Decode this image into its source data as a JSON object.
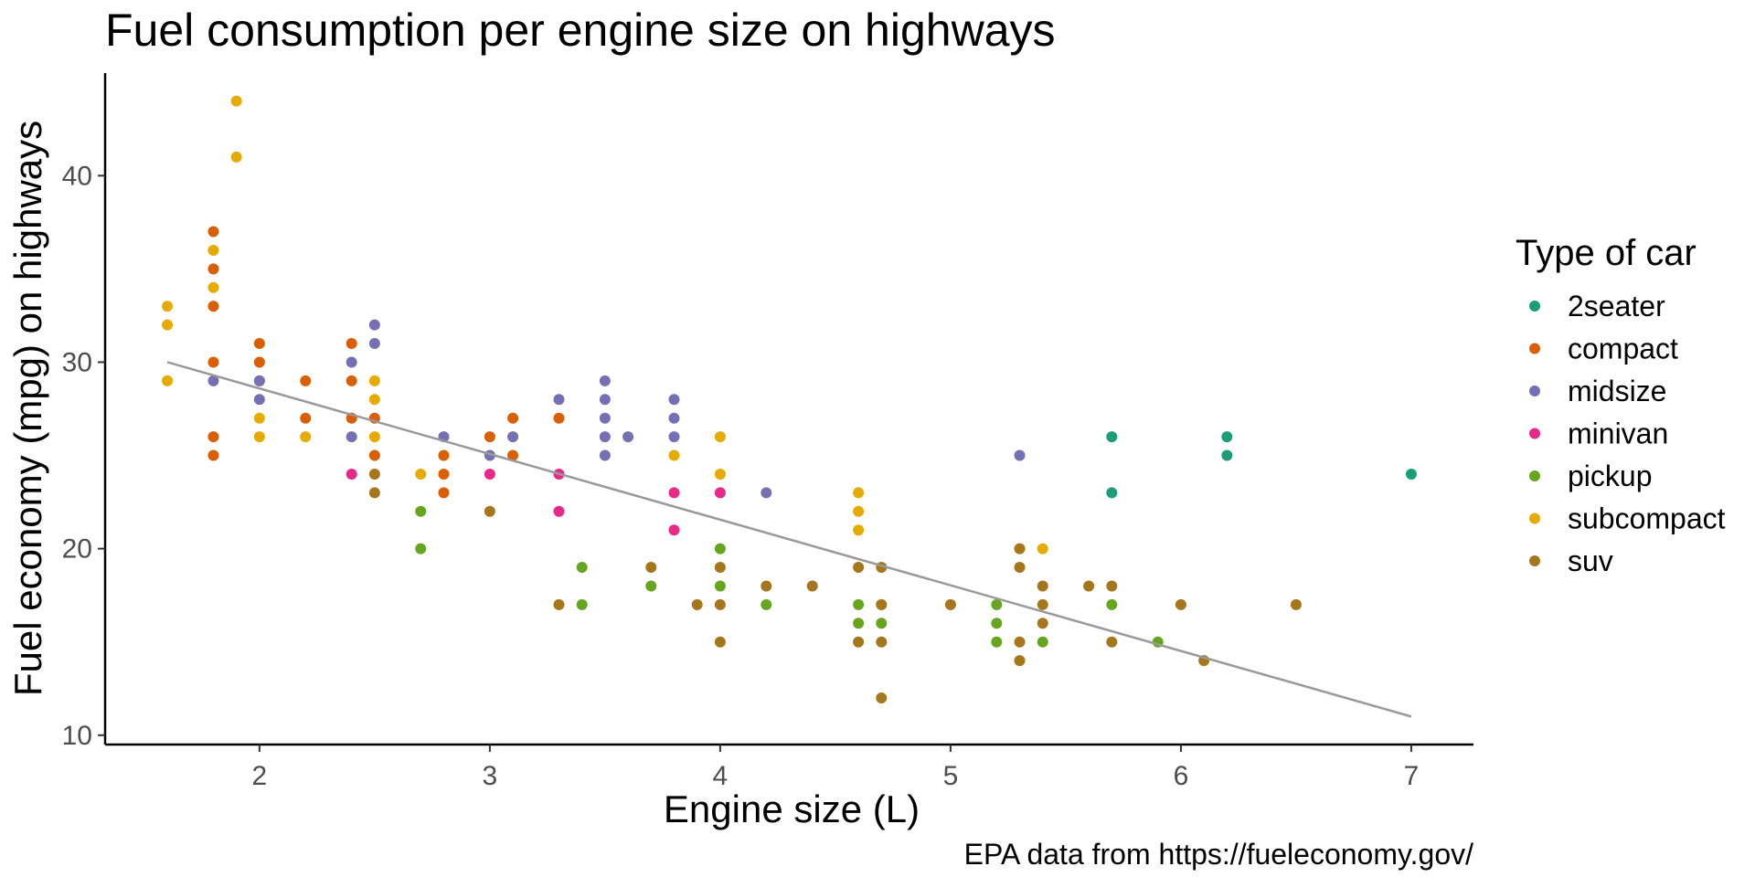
{
  "chart_data": {
    "type": "scatter",
    "title": "Fuel consumption per engine size on highways",
    "xlabel": "Engine size (L)",
    "ylabel": "Fuel economy (mpg) on highways",
    "caption": "EPA data from https://fueleconomy.gov/",
    "xlim": [
      1.33,
      7.27
    ],
    "ylim": [
      9.5,
      45.5
    ],
    "x_ticks": [
      2,
      3,
      4,
      5,
      6,
      7
    ],
    "y_ticks": [
      10,
      20,
      30,
      40
    ],
    "grid": false,
    "legend": {
      "title": "Type of car",
      "placement": "right"
    },
    "trendline": {
      "x": [
        1.6,
        7.0
      ],
      "y": [
        30.0,
        11.0
      ],
      "color": "#999999"
    },
    "series": [
      {
        "name": "2seater",
        "color": "#1B9E77",
        "points": [
          [
            5.7,
            26
          ],
          [
            5.7,
            23
          ],
          [
            6.2,
            26
          ],
          [
            6.2,
            25
          ],
          [
            7.0,
            24
          ]
        ]
      },
      {
        "name": "compact",
        "color": "#D95F02",
        "points": [
          [
            1.8,
            37
          ],
          [
            1.8,
            35
          ],
          [
            1.8,
            33
          ],
          [
            1.8,
            30
          ],
          [
            1.8,
            26
          ],
          [
            1.8,
            25
          ],
          [
            2.0,
            31
          ],
          [
            2.0,
            30
          ],
          [
            2.0,
            29
          ],
          [
            2.2,
            29
          ],
          [
            2.2,
            27
          ],
          [
            2.4,
            31
          ],
          [
            2.4,
            29
          ],
          [
            2.4,
            27
          ],
          [
            2.5,
            27
          ],
          [
            2.5,
            25
          ],
          [
            2.8,
            25
          ],
          [
            2.8,
            24
          ],
          [
            2.8,
            23
          ],
          [
            3.0,
            26
          ],
          [
            3.1,
            27
          ],
          [
            3.1,
            25
          ],
          [
            3.3,
            27
          ]
        ]
      },
      {
        "name": "midsize",
        "color": "#7570B3",
        "points": [
          [
            1.8,
            29
          ],
          [
            2.0,
            29
          ],
          [
            2.0,
            28
          ],
          [
            2.4,
            30
          ],
          [
            2.4,
            26
          ],
          [
            2.5,
            32
          ],
          [
            2.5,
            31
          ],
          [
            2.8,
            26
          ],
          [
            3.0,
            25
          ],
          [
            3.1,
            26
          ],
          [
            3.3,
            28
          ],
          [
            3.5,
            29
          ],
          [
            3.5,
            28
          ],
          [
            3.5,
            27
          ],
          [
            3.5,
            26
          ],
          [
            3.5,
            25
          ],
          [
            3.6,
            26
          ],
          [
            3.8,
            28
          ],
          [
            3.8,
            27
          ],
          [
            3.8,
            26
          ],
          [
            4.2,
            23
          ],
          [
            5.3,
            25
          ]
        ]
      },
      {
        "name": "minivan",
        "color": "#E7298A",
        "points": [
          [
            2.4,
            24
          ],
          [
            3.0,
            24
          ],
          [
            3.3,
            24
          ],
          [
            3.3,
            22
          ],
          [
            3.8,
            23
          ],
          [
            3.8,
            21
          ],
          [
            4.0,
            23
          ]
        ]
      },
      {
        "name": "pickup",
        "color": "#66A61E",
        "points": [
          [
            2.7,
            22
          ],
          [
            2.7,
            20
          ],
          [
            3.4,
            19
          ],
          [
            3.4,
            17
          ],
          [
            3.7,
            18
          ],
          [
            4.0,
            20
          ],
          [
            4.0,
            18
          ],
          [
            4.2,
            17
          ],
          [
            4.6,
            17
          ],
          [
            4.6,
            16
          ],
          [
            4.7,
            17
          ],
          [
            4.7,
            16
          ],
          [
            5.2,
            17
          ],
          [
            5.2,
            16
          ],
          [
            5.2,
            15
          ],
          [
            5.4,
            15
          ],
          [
            5.7,
            17
          ],
          [
            5.9,
            15
          ]
        ]
      },
      {
        "name": "subcompact",
        "color": "#E6AB02",
        "points": [
          [
            1.6,
            33
          ],
          [
            1.6,
            32
          ],
          [
            1.6,
            29
          ],
          [
            1.8,
            36
          ],
          [
            1.8,
            34
          ],
          [
            1.9,
            44
          ],
          [
            1.9,
            41
          ],
          [
            2.0,
            27
          ],
          [
            2.0,
            26
          ],
          [
            2.2,
            26
          ],
          [
            2.5,
            29
          ],
          [
            2.5,
            28
          ],
          [
            2.5,
            26
          ],
          [
            2.7,
            24
          ],
          [
            3.8,
            25
          ],
          [
            4.0,
            26
          ],
          [
            4.0,
            24
          ],
          [
            4.6,
            23
          ],
          [
            4.6,
            22
          ],
          [
            4.6,
            21
          ],
          [
            5.4,
            20
          ]
        ]
      },
      {
        "name": "suv",
        "color": "#A6761D",
        "points": [
          [
            2.5,
            24
          ],
          [
            2.5,
            23
          ],
          [
            3.0,
            22
          ],
          [
            3.3,
            17
          ],
          [
            3.7,
            19
          ],
          [
            3.9,
            17
          ],
          [
            4.0,
            19
          ],
          [
            4.0,
            17
          ],
          [
            4.0,
            15
          ],
          [
            4.2,
            18
          ],
          [
            4.4,
            18
          ],
          [
            4.6,
            19
          ],
          [
            4.6,
            15
          ],
          [
            4.7,
            19
          ],
          [
            4.7,
            17
          ],
          [
            4.7,
            15
          ],
          [
            4.7,
            12
          ],
          [
            5.0,
            17
          ],
          [
            5.3,
            20
          ],
          [
            5.3,
            19
          ],
          [
            5.3,
            15
          ],
          [
            5.3,
            14
          ],
          [
            5.4,
            18
          ],
          [
            5.4,
            17
          ],
          [
            5.4,
            16
          ],
          [
            5.6,
            18
          ],
          [
            5.7,
            18
          ],
          [
            5.7,
            15
          ],
          [
            6.0,
            17
          ],
          [
            6.1,
            14
          ],
          [
            6.5,
            17
          ]
        ]
      }
    ]
  }
}
